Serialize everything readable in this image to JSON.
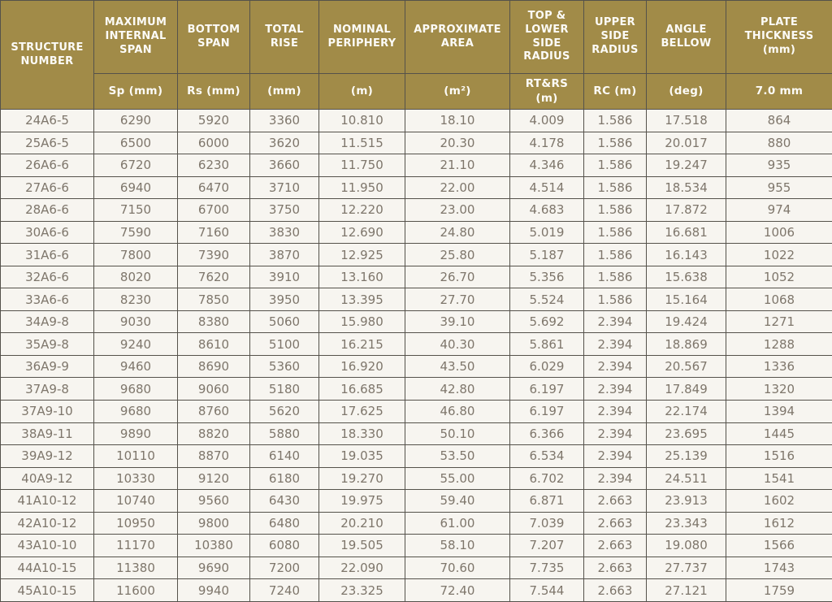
{
  "colors": {
    "header_bg": "#a18b48",
    "header_text": "#fcfbf7",
    "body_bg": "#f7f5f0",
    "cell_text": "#7e766b",
    "border": "#55524b"
  },
  "table": {
    "columns": [
      {
        "label": "STRUCTURE NUMBER",
        "sub": ""
      },
      {
        "label": "MAXIMUM INTERNAL SPAN",
        "sub": "Sp (mm)"
      },
      {
        "label": "BOTTOM SPAN",
        "sub": "Rs (mm)"
      },
      {
        "label": "TOTAL RISE",
        "sub": "(mm)"
      },
      {
        "label": "NOMINAL PERIPHERY",
        "sub": "(m)"
      },
      {
        "label": "APPROXIMATE AREA",
        "sub": "(m²)"
      },
      {
        "label": "TOP & LOWER SIDE RADIUS",
        "sub": "RT&RS (m)"
      },
      {
        "label": "UPPER SIDE RADIUS",
        "sub": "RC (m)"
      },
      {
        "label": "ANGLE BELLOW",
        "sub": "(deg)"
      },
      {
        "label": "PLATE THICKNESS (mm)",
        "sub": "7.0 mm"
      }
    ],
    "rows": [
      [
        "24A6-5",
        "6290",
        "5920",
        "3360",
        "10.810",
        "18.10",
        "4.009",
        "1.586",
        "17.518",
        "864"
      ],
      [
        "25A6-5",
        "6500",
        "6000",
        "3620",
        "11.515",
        "20.30",
        "4.178",
        "1.586",
        "20.017",
        "880"
      ],
      [
        "26A6-6",
        "6720",
        "6230",
        "3660",
        "11.750",
        "21.10",
        "4.346",
        "1.586",
        "19.247",
        "935"
      ],
      [
        "27A6-6",
        "6940",
        "6470",
        "3710",
        "11.950",
        "22.00",
        "4.514",
        "1.586",
        "18.534",
        "955"
      ],
      [
        "28A6-6",
        "7150",
        "6700",
        "3750",
        "12.220",
        "23.00",
        "4.683",
        "1.586",
        "17.872",
        "974"
      ],
      [
        "30A6-6",
        "7590",
        "7160",
        "3830",
        "12.690",
        "24.80",
        "5.019",
        "1.586",
        "16.681",
        "1006"
      ],
      [
        "31A6-6",
        "7800",
        "7390",
        "3870",
        "12.925",
        "25.80",
        "5.187",
        "1.586",
        "16.143",
        "1022"
      ],
      [
        "32A6-6",
        "8020",
        "7620",
        "3910",
        "13.160",
        "26.70",
        "5.356",
        "1.586",
        "15.638",
        "1052"
      ],
      [
        "33A6-6",
        "8230",
        "7850",
        "3950",
        "13.395",
        "27.70",
        "5.524",
        "1.586",
        "15.164",
        "1068"
      ],
      [
        "34A9-8",
        "9030",
        "8380",
        "5060",
        "15.980",
        "39.10",
        "5.692",
        "2.394",
        "19.424",
        "1271"
      ],
      [
        "35A9-8",
        "9240",
        "8610",
        "5100",
        "16.215",
        "40.30",
        "5.861",
        "2.394",
        "18.869",
        "1288"
      ],
      [
        "36A9-9",
        "9460",
        "8690",
        "5360",
        "16.920",
        "43.50",
        "6.029",
        "2.394",
        "20.567",
        "1336"
      ],
      [
        "37A9-8",
        "9680",
        "9060",
        "5180",
        "16.685",
        "42.80",
        "6.197",
        "2.394",
        "17.849",
        "1320"
      ],
      [
        "37A9-10",
        "9680",
        "8760",
        "5620",
        "17.625",
        "46.80",
        "6.197",
        "2.394",
        "22.174",
        "1394"
      ],
      [
        "38A9-11",
        "9890",
        "8820",
        "5880",
        "18.330",
        "50.10",
        "6.366",
        "2.394",
        "23.695",
        "1445"
      ],
      [
        "39A9-12",
        "10110",
        "8870",
        "6140",
        "19.035",
        "53.50",
        "6.534",
        "2.394",
        "25.139",
        "1516"
      ],
      [
        "40A9-12",
        "10330",
        "9120",
        "6180",
        "19.270",
        "55.00",
        "6.702",
        "2.394",
        "24.511",
        "1541"
      ],
      [
        "41A10-12",
        "10740",
        "9560",
        "6430",
        "19.975",
        "59.40",
        "6.871",
        "2.663",
        "23.913",
        "1602"
      ],
      [
        "42A10-12",
        "10950",
        "9800",
        "6480",
        "20.210",
        "61.00",
        "7.039",
        "2.663",
        "23.343",
        "1612"
      ],
      [
        "43A10-10",
        "11170",
        "10380",
        "6080",
        "19.505",
        "58.10",
        "7.207",
        "2.663",
        "19.080",
        "1566"
      ],
      [
        "44A10-15",
        "11380",
        "9690",
        "7200",
        "22.090",
        "70.60",
        "7.735",
        "2.663",
        "27.737",
        "1743"
      ],
      [
        "45A10-15",
        "11600",
        "9940",
        "7240",
        "23.325",
        "72.40",
        "7.544",
        "2.663",
        "27.121",
        "1759"
      ]
    ]
  }
}
